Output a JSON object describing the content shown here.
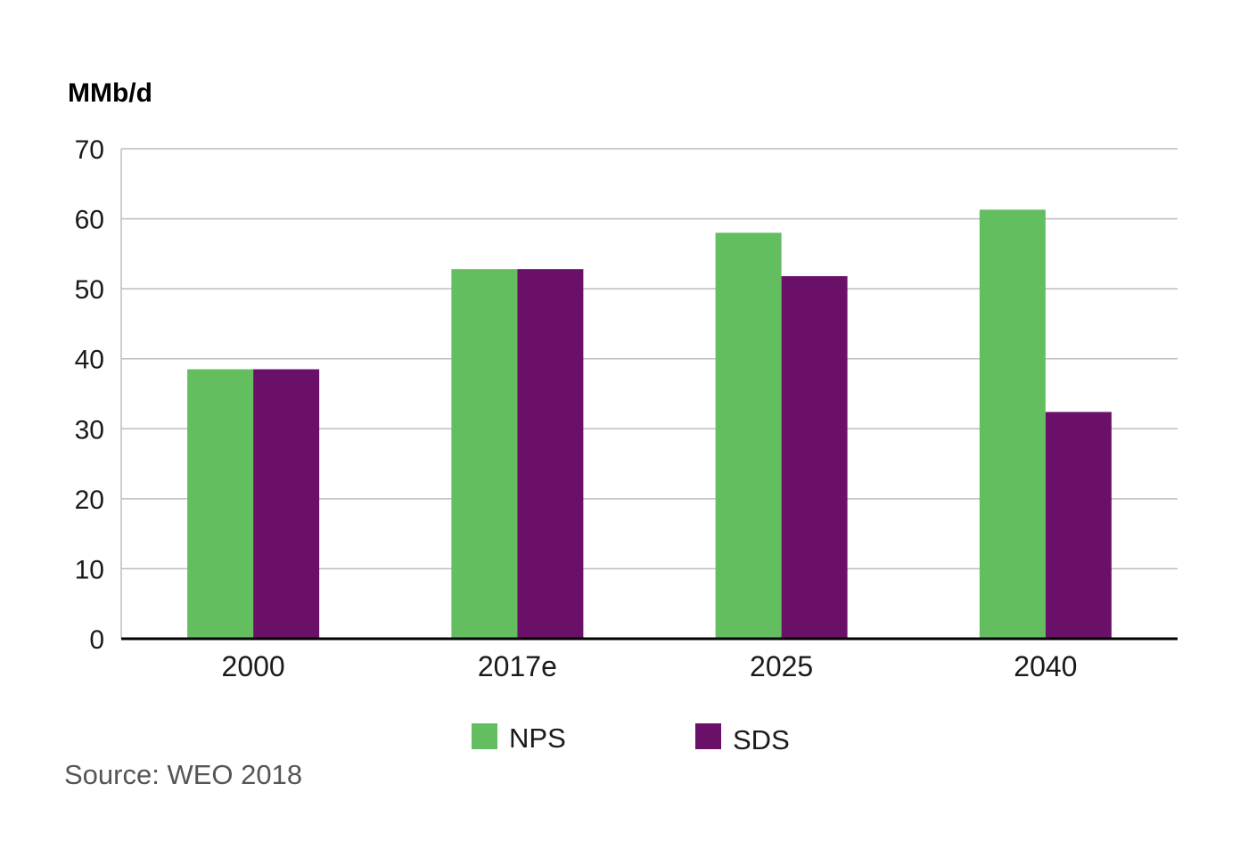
{
  "chart_data": {
    "type": "bar",
    "unit_label": "MMb/d",
    "categories": [
      "2000",
      "2017e",
      "2025",
      "2040"
    ],
    "series": [
      {
        "name": "NPS",
        "color": "#63be60",
        "values": [
          38.5,
          52.8,
          58.0,
          61.3
        ]
      },
      {
        "name": "SDS",
        "color": "#6b1068",
        "values": [
          38.5,
          52.8,
          51.8,
          32.4
        ]
      }
    ],
    "ylim": [
      0,
      70
    ],
    "yticks": [
      0,
      10,
      20,
      30,
      40,
      50,
      60,
      70
    ],
    "grid": true,
    "legend_position": "bottom-center",
    "source": "Source: WEO 2018"
  }
}
